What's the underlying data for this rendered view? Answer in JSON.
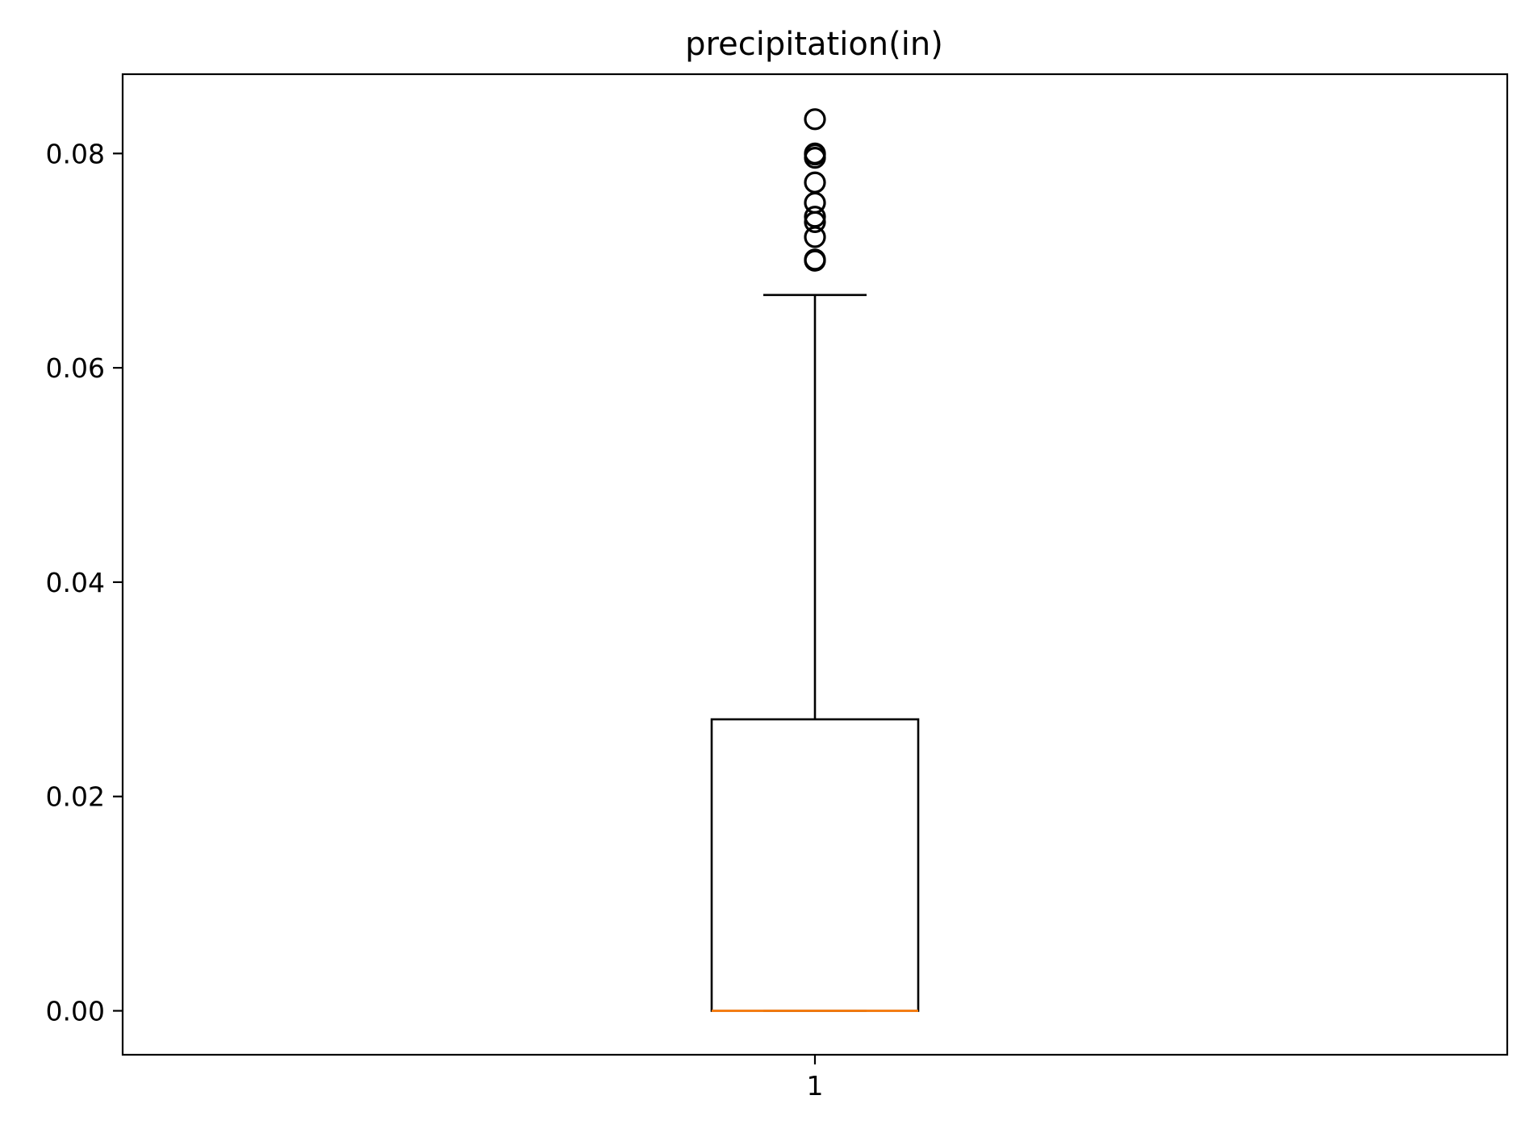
{
  "chart_data": {
    "type": "boxplot",
    "title": "precipitation(in)",
    "xlabel": "",
    "ylabel": "",
    "categories": [
      "1"
    ],
    "x_ticks": [
      "1"
    ],
    "y_ticks": [
      "0.00",
      "0.02",
      "0.04",
      "0.06",
      "0.08"
    ],
    "ylim": [
      -0.0041,
      0.0874
    ],
    "grid": false,
    "legend": "none",
    "series": [
      {
        "category": "1",
        "whisker_low": 0.0,
        "q1": 0.0,
        "median": 0.0,
        "q3": 0.0272,
        "whisker_high": 0.0668,
        "outliers": [
          0.07,
          0.0701,
          0.0722,
          0.0736,
          0.0741,
          0.0754,
          0.0773,
          0.0796,
          0.0799,
          0.08,
          0.0832
        ]
      }
    ],
    "colors": {
      "box": "#000000",
      "median": "#ff7f0e",
      "flier": "#000000",
      "axes": "#000000",
      "background": "#ffffff"
    }
  }
}
